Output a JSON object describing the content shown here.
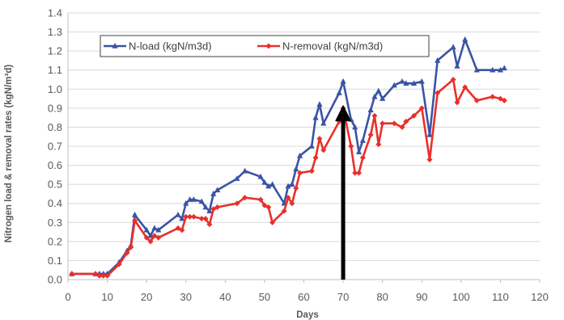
{
  "chart_data": {
    "type": "line",
    "xlabel": "Days",
    "ylabel": "Nitrogen load & removal rates (kgN/m³d)",
    "xlim": [
      0,
      120
    ],
    "ylim": [
      0,
      1.4
    ],
    "x_ticks": [
      "0",
      "10",
      "20",
      "30",
      "40",
      "50",
      "60",
      "70",
      "80",
      "90",
      "100",
      "110",
      "120"
    ],
    "y_ticks": [
      "0.0",
      "0.1",
      "0.2",
      "0.3",
      "0.4",
      "0.5",
      "0.6",
      "0.7",
      "0.8",
      "0.9",
      "1.0",
      "1.1",
      "1.2",
      "1.3",
      "1.4"
    ],
    "grid": "horizontal",
    "legend_position": "top-left",
    "annotation": {
      "type": "arrow",
      "x": 70,
      "y_from": 0,
      "y_to": 0.9,
      "color": "#000000"
    },
    "series": [
      {
        "name": "N-load (kgN/m3d)",
        "color": "#3a54a4",
        "marker": "triangle",
        "x": [
          1,
          7,
          8,
          9,
          10,
          13,
          15,
          16,
          17,
          20,
          21,
          22,
          23,
          28,
          29,
          30,
          31,
          32,
          34,
          35,
          36,
          37,
          38,
          43,
          45,
          49,
          50,
          51,
          52,
          55,
          56,
          57,
          58,
          59,
          62,
          63,
          64,
          65,
          69,
          70,
          72,
          73,
          74,
          75,
          77,
          78,
          79,
          80,
          83,
          85,
          86,
          88,
          90,
          92,
          94,
          98,
          99,
          101,
          104,
          108,
          110,
          111
        ],
        "y": [
          0.03,
          0.03,
          0.03,
          0.03,
          0.03,
          0.09,
          0.15,
          0.18,
          0.34,
          0.26,
          0.23,
          0.27,
          0.26,
          0.34,
          0.32,
          0.4,
          0.42,
          0.42,
          0.41,
          0.38,
          0.36,
          0.45,
          0.47,
          0.53,
          0.57,
          0.54,
          0.51,
          0.49,
          0.5,
          0.4,
          0.49,
          0.5,
          0.58,
          0.65,
          0.7,
          0.85,
          0.92,
          0.82,
          0.98,
          1.04,
          0.84,
          0.8,
          0.67,
          0.73,
          0.89,
          0.96,
          0.99,
          0.95,
          1.02,
          1.04,
          1.03,
          1.03,
          1.04,
          0.76,
          1.15,
          1.22,
          1.12,
          1.26,
          1.1,
          1.1,
          1.1,
          1.11
        ]
      },
      {
        "name": "N-removal (kgN/m3d)",
        "color": "#e8302a",
        "marker": "diamond",
        "x": [
          1,
          7,
          8,
          9,
          10,
          13,
          15,
          16,
          17,
          20,
          21,
          22,
          23,
          28,
          29,
          30,
          31,
          32,
          34,
          35,
          36,
          37,
          38,
          43,
          45,
          49,
          50,
          51,
          52,
          55,
          56,
          57,
          58,
          59,
          62,
          63,
          64,
          65,
          69,
          70,
          72,
          73,
          74,
          75,
          77,
          78,
          79,
          80,
          83,
          85,
          86,
          88,
          90,
          92,
          94,
          98,
          99,
          101,
          104,
          108,
          110,
          111
        ],
        "y": [
          0.03,
          0.03,
          0.02,
          0.02,
          0.02,
          0.08,
          0.14,
          0.17,
          0.31,
          0.22,
          0.2,
          0.23,
          0.22,
          0.27,
          0.26,
          0.33,
          0.33,
          0.33,
          0.32,
          0.32,
          0.29,
          0.37,
          0.38,
          0.4,
          0.43,
          0.42,
          0.39,
          0.38,
          0.3,
          0.36,
          0.43,
          0.4,
          0.48,
          0.56,
          0.57,
          0.64,
          0.74,
          0.68,
          0.83,
          0.9,
          0.7,
          0.56,
          0.56,
          0.64,
          0.76,
          0.86,
          0.71,
          0.82,
          0.82,
          0.8,
          0.83,
          0.86,
          0.9,
          0.63,
          0.98,
          1.05,
          0.93,
          1.01,
          0.94,
          0.96,
          0.95,
          0.94
        ]
      }
    ]
  }
}
